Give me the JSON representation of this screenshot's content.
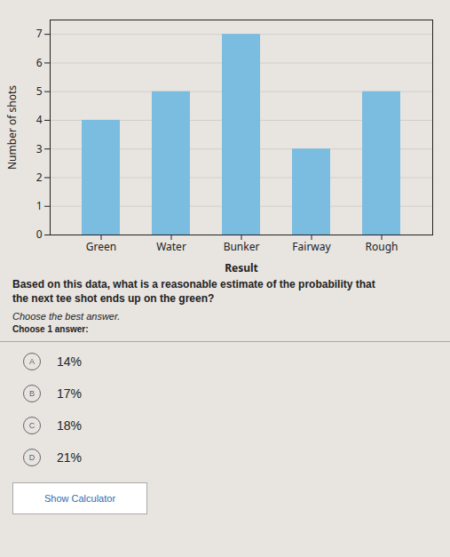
{
  "chart_data": {
    "type": "bar",
    "categories": [
      "Green",
      "Water",
      "Bunker",
      "Fairway",
      "Rough"
    ],
    "values": [
      4,
      5,
      7,
      3,
      5
    ],
    "color": "#7bbde0",
    "xlabel": "Result",
    "ylabel": "Number of shots",
    "ylim": [
      0,
      7.5
    ],
    "yticks": [
      0,
      1,
      2,
      3,
      4,
      5,
      6,
      7
    ],
    "grid": true,
    "annotations": [
      "Based on this data, what is a reasonable estimate of the probability that",
      "the next tee shot ends up on the green?",
      "Choose the best answer.",
      "Choose 1 answer:"
    ],
    "answers": [
      {
        "letter": "A",
        "text": "14%"
      },
      {
        "letter": "B",
        "text": "17%"
      },
      {
        "letter": "C",
        "text": "18%"
      },
      {
        "letter": "D",
        "text": "21%"
      }
    ],
    "button_text": "Show Calculator"
  }
}
